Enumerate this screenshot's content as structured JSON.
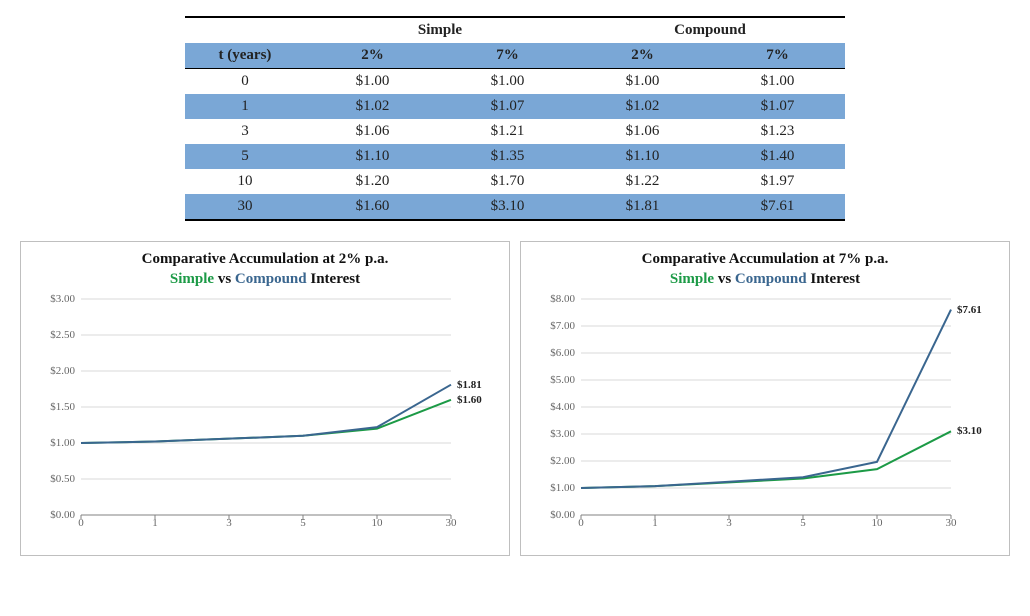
{
  "table": {
    "group_headers": [
      "Simple",
      "Compound"
    ],
    "row_header_label": "t (years)",
    "sub_headers": [
      "2%",
      "7%",
      "2%",
      "7%"
    ],
    "rows": [
      {
        "t": "0",
        "s2": "$1.00",
        "s7": "$1.00",
        "c2": "$1.00",
        "c7": "$1.00",
        "shade": false
      },
      {
        "t": "1",
        "s2": "$1.02",
        "s7": "$1.07",
        "c2": "$1.02",
        "c7": "$1.07",
        "shade": true
      },
      {
        "t": "3",
        "s2": "$1.06",
        "s7": "$1.21",
        "c2": "$1.06",
        "c7": "$1.23",
        "shade": false
      },
      {
        "t": "5",
        "s2": "$1.10",
        "s7": "$1.35",
        "c2": "$1.10",
        "c7": "$1.40",
        "shade": true
      },
      {
        "t": "10",
        "s2": "$1.20",
        "s7": "$1.70",
        "c2": "$1.22",
        "c7": "$1.97",
        "shade": false
      },
      {
        "t": "30",
        "s2": "$1.60",
        "s7": "$3.10",
        "c2": "$1.81",
        "c7": "$7.61",
        "shade": true
      }
    ],
    "shade_color": "#7aa7d6",
    "border_color": "#000000"
  },
  "charts": {
    "categories": [
      "0",
      "1",
      "3",
      "5",
      "10",
      "30"
    ],
    "simple_color": "#1c9a46",
    "compound_color": "#3a668f",
    "gridline_color": "#d9d9d9",
    "axis_color": "#808080",
    "chart_border_color": "#bfbfbf",
    "title_fontsize": 15,
    "label_fontsize": 11,
    "line_width": 2,
    "left": {
      "title_line1": "Comparative Accumulation at 2% p.a.",
      "title_line2_parts": [
        "Simple",
        " vs ",
        "Compound",
        " Interest"
      ],
      "ylim": [
        0,
        3.0
      ],
      "ytick_step": 0.5,
      "y_tick_labels": [
        "$0.00",
        "$0.50",
        "$1.00",
        "$1.50",
        "$2.00",
        "$2.50",
        "$3.00"
      ],
      "simple": [
        1.0,
        1.02,
        1.06,
        1.1,
        1.2,
        1.6
      ],
      "compound": [
        1.0,
        1.02,
        1.06,
        1.1,
        1.22,
        1.81
      ],
      "end_label_simple": "$1.60",
      "end_label_compound": "$1.81"
    },
    "right": {
      "title_line1": "Comparative Accumulation at 7% p.a.",
      "title_line2_parts": [
        "Simple",
        " vs ",
        "Compound",
        " Interest"
      ],
      "ylim": [
        0,
        8.0
      ],
      "ytick_step": 1.0,
      "y_tick_labels": [
        "$0.00",
        "$1.00",
        "$2.00",
        "$3.00",
        "$4.00",
        "$5.00",
        "$6.00",
        "$7.00",
        "$8.00"
      ],
      "simple": [
        1.0,
        1.07,
        1.21,
        1.35,
        1.7,
        3.1
      ],
      "compound": [
        1.0,
        1.07,
        1.23,
        1.4,
        1.97,
        7.61
      ],
      "end_label_simple": "$3.10",
      "end_label_compound": "$7.61"
    }
  }
}
